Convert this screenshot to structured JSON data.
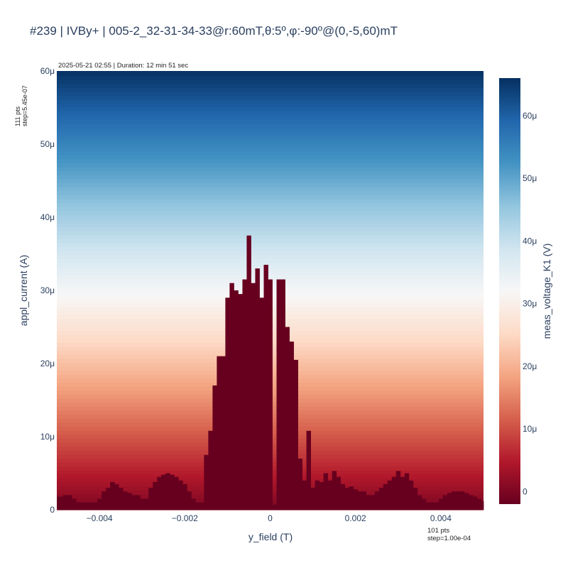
{
  "title": "#239 | IVBy+ | 005-2_32-31-34-33@r:60mT,θ:5º,φ:-90º@(0,-5,60)mT",
  "timestamp_text": "2025-05-21 02:55 | Duration: 12 min 51 sec",
  "y_points_text": [
    "111 pts",
    "step=5.45e-07"
  ],
  "x_points_text": [
    "101 pts",
    "step=1.00e-04"
  ],
  "chart_data": {
    "type": "heatmap",
    "title": "#239 | IVBy+ | 005-2_32-31-34-33@r:60mT,θ:5º,φ:-90º@(0,-5,60)mT",
    "xlabel": "y_field (T)",
    "ylabel": "appl_current (A)",
    "colorbar_label": "meas_voltage_K1 (V)",
    "xlim": [
      -0.005,
      0.005
    ],
    "ylim": [
      0,
      6e-05
    ],
    "x_ticks": [
      -0.004,
      -0.002,
      0,
      0.002,
      0.004
    ],
    "x_tick_labels": [
      "−0.004",
      "−0.002",
      "0",
      "0.002",
      "0.004"
    ],
    "y_ticks": [
      0,
      1e-05,
      2e-05,
      3e-05,
      4e-05,
      5e-05,
      6e-05
    ],
    "y_tick_labels": [
      "0",
      "10μ",
      "20μ",
      "30μ",
      "40μ",
      "50μ",
      "60μ"
    ],
    "colorscale": "RdBu",
    "colorbar_range": [
      -2e-06,
      6.6e-05
    ],
    "colorbar_ticks": [
      0,
      1e-05,
      2e-05,
      3e-05,
      4e-05,
      5e-05,
      6e-05
    ],
    "colorbar_tick_labels": [
      "0",
      "10μ",
      "20μ",
      "30μ",
      "40μ",
      "50μ",
      "60μ"
    ],
    "x_points": 101,
    "x_step": 0.0001,
    "y_points": 111,
    "y_step": 5.45e-07,
    "superconducting_boundary_current_A": [
      1.8e-06,
      1.8e-06,
      2e-06,
      2e-06,
      1.5e-06,
      1e-06,
      1e-06,
      1e-06,
      1e-06,
      1e-06,
      1.5e-06,
      2.5e-06,
      3e-06,
      3.8e-06,
      3.5e-06,
      3e-06,
      2.5e-06,
      2.3e-06,
      2e-06,
      2e-06,
      1.5e-06,
      1.5e-06,
      3e-06,
      3.8e-06,
      4.5e-06,
      4.8e-06,
      5e-06,
      4.8e-06,
      4.5e-06,
      4e-06,
      3.5e-06,
      2.5e-06,
      1.5e-06,
      1e-06,
      1e-06,
      7.5e-06,
      1.08e-05,
      1.7e-05,
      2.1e-05,
      2.1e-05,
      2.9e-05,
      3.1e-05,
      3e-05,
      2.95e-05,
      3.15e-05,
      3.75e-05,
      3.1e-05,
      3.3e-05,
      2.9e-05,
      3.35e-05,
      3.15e-05,
      7e-07,
      3.15e-05,
      3.15e-05,
      2.5e-05,
      2.3e-05,
      2.05e-05,
      7e-06,
      4e-06,
      1.08e-05,
      3e-06,
      4e-06,
      3.8e-06,
      5e-06,
      4e-06,
      5.3e-06,
      4.5e-06,
      3.5e-06,
      3e-06,
      3.2e-06,
      2.8e-06,
      2.5e-06,
      2.5e-06,
      2e-06,
      2e-06,
      2.5e-06,
      3e-06,
      3.5e-06,
      4e-06,
      4.5e-06,
      5.3e-06,
      4.5e-06,
      5e-06,
      4e-06,
      3e-06,
      2e-06,
      1.5e-06,
      1e-06,
      1e-06,
      1e-06,
      1.5e-06,
      2e-06,
      2.3e-06,
      2.5e-06,
      2.5e-06,
      2.5e-06,
      2.3e-06,
      2e-06,
      1.8e-06,
      1.5e-06,
      1.2e-06
    ],
    "normal_state_voltage_at_max_current_V": 6.6e-05,
    "superconducting_voltage_V": -2e-06
  }
}
